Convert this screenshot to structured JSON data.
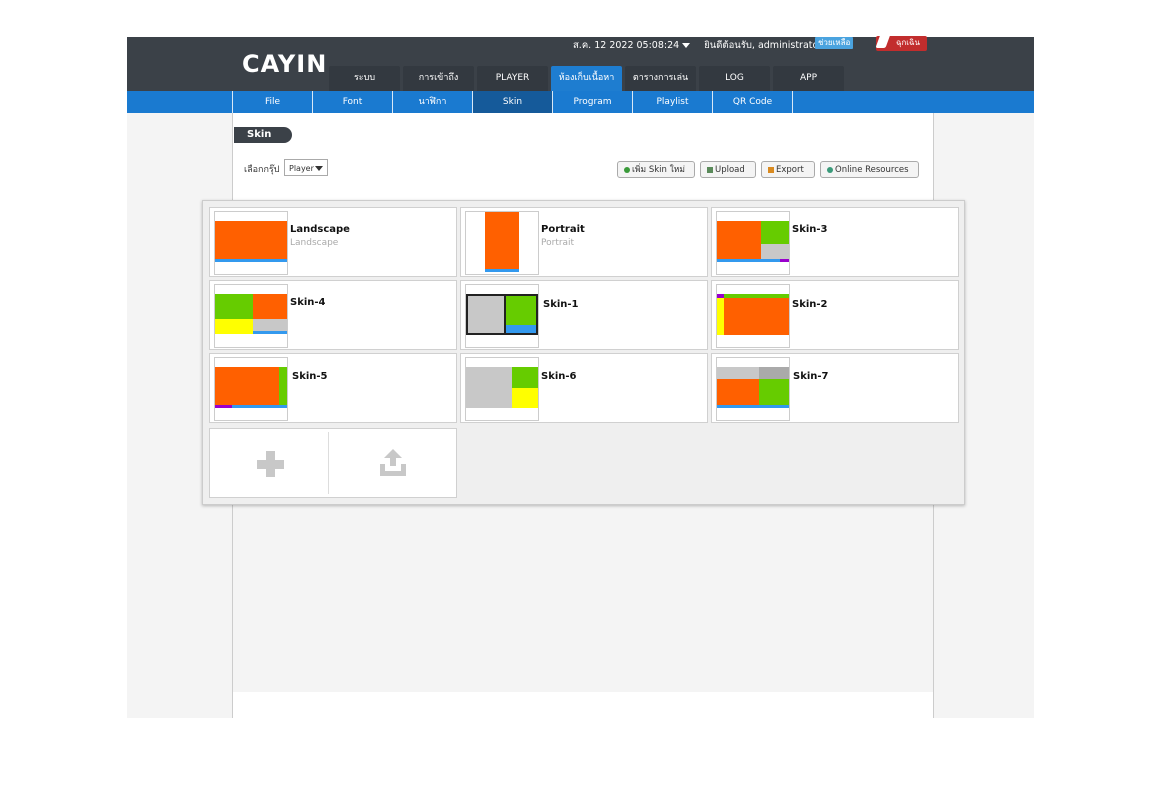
{
  "header": {
    "logo": "CAYIN",
    "datetime": "ส.ค. 12 2022 05:08:24",
    "welcome": "ยินดีต้อนรับ, administrator",
    "help": "ช่วยเหลือ",
    "emergency": "ฉุกเฉิน"
  },
  "tabs": [
    {
      "label": "ระบบ"
    },
    {
      "label": "การเข้าถึง"
    },
    {
      "label": "PLAYER"
    },
    {
      "label": "ห้องเก็บเนื้อหา"
    },
    {
      "label": "ตารางการเล่น"
    },
    {
      "label": "LOG"
    },
    {
      "label": "APP"
    }
  ],
  "subnav": [
    {
      "label": "File"
    },
    {
      "label": "Font"
    },
    {
      "label": "นาฬิกา"
    },
    {
      "label": "Skin"
    },
    {
      "label": "Program"
    },
    {
      "label": "Playlist"
    },
    {
      "label": "QR Code"
    }
  ],
  "page": {
    "title": "Skin",
    "group_label": "เลือกกรุ๊ป",
    "group_value": "Player",
    "buttons": {
      "add": "เพิ่ม Skin ใหม่",
      "upload": "Upload",
      "export": "Export",
      "online": "Online Resources"
    }
  },
  "skins": [
    {
      "title": "Landscape",
      "subtitle": "Landscape"
    },
    {
      "title": "Portrait",
      "subtitle": "Portrait"
    },
    {
      "title": "Skin-3",
      "subtitle": ""
    },
    {
      "title": "Skin-4",
      "subtitle": ""
    },
    {
      "title": "Skin-1",
      "subtitle": ""
    },
    {
      "title": "Skin-2",
      "subtitle": ""
    },
    {
      "title": "Skin-5",
      "subtitle": ""
    },
    {
      "title": "Skin-6",
      "subtitle": ""
    },
    {
      "title": "Skin-7",
      "subtitle": ""
    }
  ],
  "colors": {
    "orange": "#ff6000",
    "green": "#66cc00",
    "yellow": "#ffff00",
    "gray": "#c8c8c8",
    "blue": "#3399ee",
    "purple": "#9900cc",
    "active_tab": "#1e7dd0"
  }
}
